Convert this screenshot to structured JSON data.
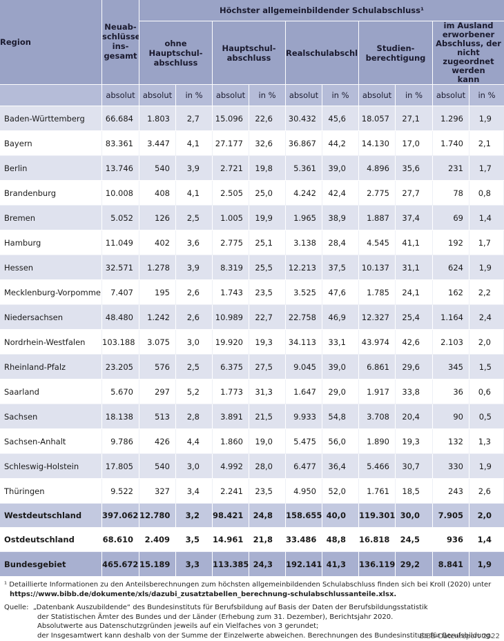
{
  "table": {
    "headers": {
      "region": "Region",
      "neuabschluesse": "Neuab-\nschlüsse\nins-\ngesamt",
      "group": "Höchster allgemeinbildender Schulabschluss¹",
      "categories": [
        "ohne Hauptschul-\nabschluss",
        "Hauptschul-\nabschluss",
        "Realschulabschluss",
        "Studien-\nberechtigung",
        "im Ausland\nerworbener\nAbschluss, der nicht\nzugeordnet werden\nkann"
      ],
      "units": [
        "absolut",
        "absolut",
        "in %",
        "absolut",
        "in %",
        "absolut",
        "in %",
        "absolut",
        "in %",
        "absolut",
        "in %"
      ]
    },
    "rows": [
      {
        "region": "Baden-Württemberg",
        "values": [
          "66.684",
          "1.803",
          "2,7",
          "15.096",
          "22,6",
          "30.432",
          "45,6",
          "18.057",
          "27,1",
          "1.296",
          "1,9"
        ]
      },
      {
        "region": "Bayern",
        "values": [
          "83.361",
          "3.447",
          "4,1",
          "27.177",
          "32,6",
          "36.867",
          "44,2",
          "14.130",
          "17,0",
          "1.740",
          "2,1"
        ]
      },
      {
        "region": "Berlin",
        "values": [
          "13.746",
          "540",
          "3,9",
          "2.721",
          "19,8",
          "5.361",
          "39,0",
          "4.896",
          "35,6",
          "231",
          "1,7"
        ]
      },
      {
        "region": "Brandenburg",
        "values": [
          "10.008",
          "408",
          "4,1",
          "2.505",
          "25,0",
          "4.242",
          "42,4",
          "2.775",
          "27,7",
          "78",
          "0,8"
        ]
      },
      {
        "region": "Bremen",
        "values": [
          "5.052",
          "126",
          "2,5",
          "1.005",
          "19,9",
          "1.965",
          "38,9",
          "1.887",
          "37,4",
          "69",
          "1,4"
        ]
      },
      {
        "region": "Hamburg",
        "values": [
          "11.049",
          "402",
          "3,6",
          "2.775",
          "25,1",
          "3.138",
          "28,4",
          "4.545",
          "41,1",
          "192",
          "1,7"
        ]
      },
      {
        "region": "Hessen",
        "values": [
          "32.571",
          "1.278",
          "3,9",
          "8.319",
          "25,5",
          "12.213",
          "37,5",
          "10.137",
          "31,1",
          "624",
          "1,9"
        ]
      },
      {
        "region": "Mecklenburg-Vorpommern",
        "values": [
          "7.407",
          "195",
          "2,6",
          "1.743",
          "23,5",
          "3.525",
          "47,6",
          "1.785",
          "24,1",
          "162",
          "2,2"
        ]
      },
      {
        "region": "Niedersachsen",
        "values": [
          "48.480",
          "1.242",
          "2,6",
          "10.989",
          "22,7",
          "22.758",
          "46,9",
          "12.327",
          "25,4",
          "1.164",
          "2,4"
        ]
      },
      {
        "region": "Nordrhein-Westfalen",
        "values": [
          "103.188",
          "3.075",
          "3,0",
          "19.920",
          "19,3",
          "34.113",
          "33,1",
          "43.974",
          "42,6",
          "2.103",
          "2,0"
        ]
      },
      {
        "region": "Rheinland-Pfalz",
        "values": [
          "23.205",
          "576",
          "2,5",
          "6.375",
          "27,5",
          "9.045",
          "39,0",
          "6.861",
          "29,6",
          "345",
          "1,5"
        ]
      },
      {
        "region": "Saarland",
        "values": [
          "5.670",
          "297",
          "5,2",
          "1.773",
          "31,3",
          "1.647",
          "29,0",
          "1.917",
          "33,8",
          "36",
          "0,6"
        ]
      },
      {
        "region": "Sachsen",
        "values": [
          "18.138",
          "513",
          "2,8",
          "3.891",
          "21,5",
          "9.933",
          "54,8",
          "3.708",
          "20,4",
          "90",
          "0,5"
        ]
      },
      {
        "region": "Sachsen-Anhalt",
        "values": [
          "9.786",
          "426",
          "4,4",
          "1.860",
          "19,0",
          "5.475",
          "56,0",
          "1.890",
          "19,3",
          "132",
          "1,3"
        ]
      },
      {
        "region": "Schleswig-Holstein",
        "values": [
          "17.805",
          "540",
          "3,0",
          "4.992",
          "28,0",
          "6.477",
          "36,4",
          "5.466",
          "30,7",
          "330",
          "1,9"
        ]
      },
      {
        "region": "Thüringen",
        "values": [
          "9.522",
          "327",
          "3,4",
          "2.241",
          "23,5",
          "4.950",
          "52,0",
          "1.761",
          "18,5",
          "243",
          "2,6"
        ]
      }
    ],
    "summary": [
      {
        "region": "Westdeutschland",
        "values": [
          "397.062",
          "12.780",
          "3,2",
          "98.421",
          "24,8",
          "158.655",
          "40,0",
          "119.301",
          "30,0",
          "7.905",
          "2,0"
        ]
      },
      {
        "region": "Ostdeutschland",
        "values": [
          "68.610",
          "2.409",
          "3,5",
          "14.961",
          "21,8",
          "33.486",
          "48,8",
          "16.818",
          "24,5",
          "936",
          "1,4"
        ]
      },
      {
        "region": "Bundesgebiet",
        "values": [
          "465.672",
          "15.189",
          "3,3",
          "113.385",
          "24,3",
          "192.141",
          "41,3",
          "136.119",
          "29,2",
          "8.841",
          "1,9"
        ]
      }
    ]
  },
  "footnotes": {
    "fn1": "¹ Detaillierte Informationen zu den Anteilsberechnungen zum höchsten allgemeinbildenden Schulabschluss finden sich bei Kroll (2020) unter",
    "fn1_link": "https://www.bibb.de/dokumente/xls/dazubi_zusatztabellen_berechnung-schulabschlussanteile.xlsx.",
    "source_label": "Quelle:",
    "source_lines": [
      "„Datenbank Auszubildende“ des Bundesinstituts für Berufsbildung auf Basis der Daten der Berufsbildungsstatistik",
      "der Statistischen Ämter des Bundes und der Länder (Erhebung zum 31. Dezember), Berichtsjahr 2020.",
      "Absolutwerte aus Datenschutzgründen jeweils auf ein Vielfaches von 3 gerundet;",
      "der Insgesamtwert kann deshalb von der Summe der Einzelwerte abweichen. Berechnungen des Bundesinstituts für Berufsbildung."
    ],
    "credit": "BIBB-Datenreport 2022"
  }
}
